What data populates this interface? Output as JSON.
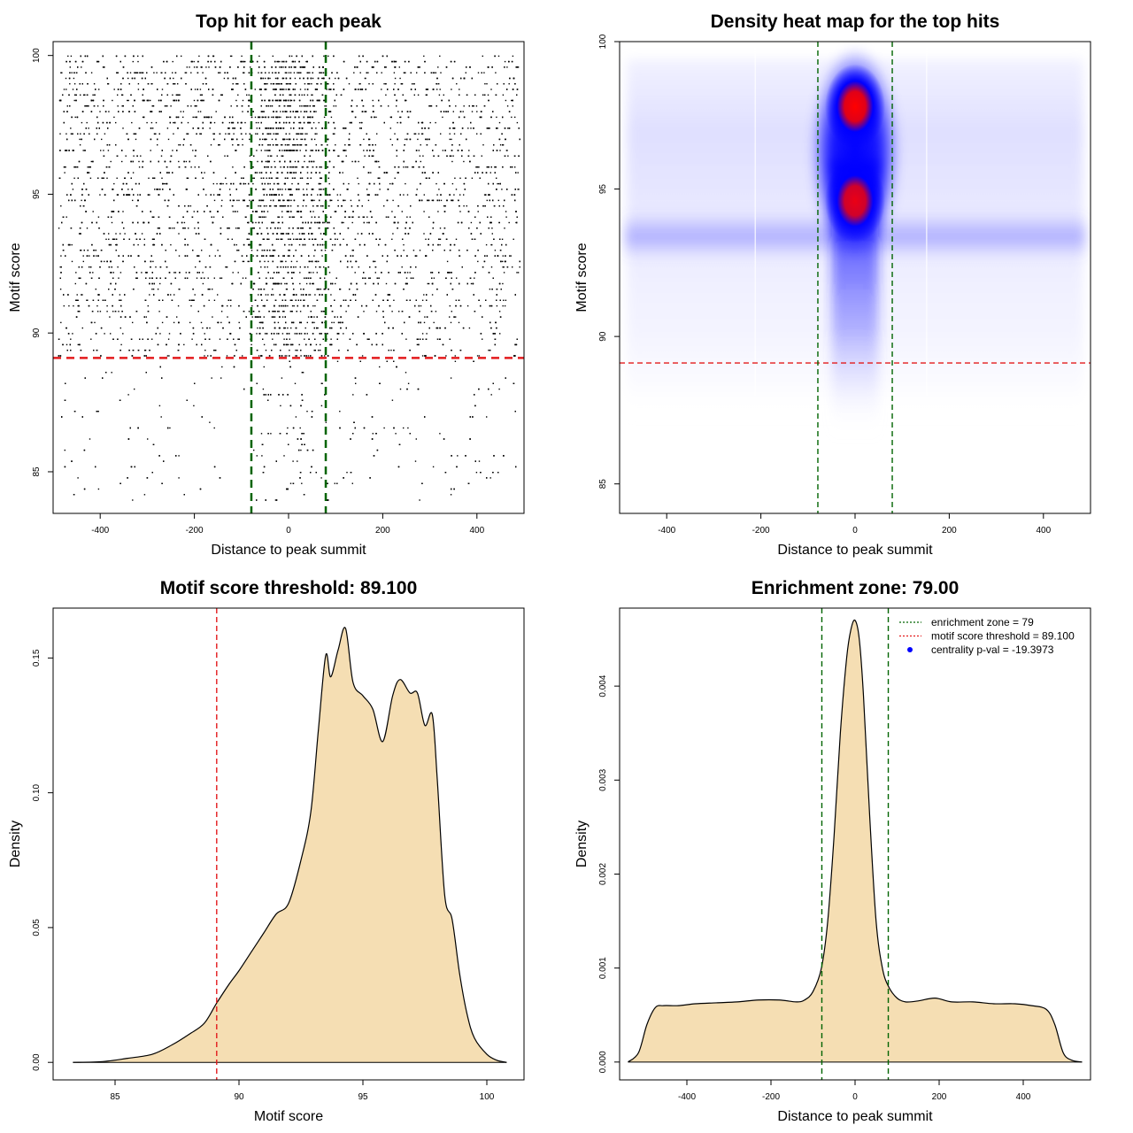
{
  "chart_data": [
    {
      "id": "scatter",
      "type": "scatter",
      "title": "Top hit for each peak",
      "xlabel": "Distance to peak summit",
      "ylabel": "Motif score",
      "xlim": [
        -500,
        500
      ],
      "ylim": [
        83.5,
        100.5
      ],
      "x_ticks": [
        -400,
        -200,
        0,
        200,
        400
      ],
      "y_ticks": [
        85,
        90,
        95,
        100
      ],
      "enrichment_zone": 79,
      "score_threshold": 89.1,
      "colors": {
        "points": "#000000",
        "threshold": "#e31a1c",
        "zone": "#006400"
      },
      "points_description": "many thousands of top-hit points, dense band at |x| < 79, most scores between 89 and 100"
    },
    {
      "id": "heatmap",
      "type": "heatmap",
      "title": "Density heat map for the top hits",
      "xlabel": "Distance to peak summit",
      "ylabel": "Motif score",
      "xlim": [
        -500,
        500
      ],
      "ylim": [
        84,
        100
      ],
      "x_ticks": [
        -400,
        -200,
        0,
        200,
        400
      ],
      "y_ticks": [
        85,
        90,
        95,
        100
      ],
      "enrichment_zone": 79,
      "score_threshold": 89.1,
      "colors": {
        "low": "#ffffff",
        "mid": "#0000ff",
        "high": "#ff0000",
        "threshold": "#e31a1c",
        "zone": "#006400"
      },
      "hotspots": [
        {
          "x": 0,
          "y": 97.8,
          "intensity": 1.0
        },
        {
          "x": 0,
          "y": 94.6,
          "intensity": 0.92
        }
      ],
      "background_band_y": 93.4
    },
    {
      "id": "score-density",
      "type": "area",
      "title": "Motif score threshold: 89.100",
      "xlabel": "Motif score",
      "ylabel": "Density",
      "xlim": [
        82.5,
        101.5
      ],
      "ylim": [
        -0.0065,
        0.1685
      ],
      "x_ticks": [
        85,
        90,
        95,
        100
      ],
      "y_ticks": [
        0.0,
        0.05,
        0.1,
        0.15
      ],
      "y_tick_labels": [
        "0.00",
        "0.05",
        "0.10",
        "0.15"
      ],
      "threshold": 89.1,
      "colors": {
        "fill": "#f5deb3",
        "line": "#000000",
        "threshold": "#e31a1c"
      },
      "x": [
        83.3,
        84.5,
        85.5,
        86.5,
        87.3,
        88.0,
        88.6,
        89.1,
        89.6,
        90.0,
        90.5,
        91.0,
        91.5,
        92.0,
        92.5,
        92.9,
        93.2,
        93.5,
        93.7,
        94.0,
        94.3,
        94.6,
        95.0,
        95.4,
        95.8,
        96.2,
        96.5,
        96.9,
        97.2,
        97.5,
        97.8,
        98.0,
        98.3,
        98.6,
        98.9,
        99.2,
        99.5,
        100.0,
        100.4,
        100.8
      ],
      "y": [
        0.0,
        0.0003,
        0.0015,
        0.003,
        0.0065,
        0.0105,
        0.0145,
        0.022,
        0.029,
        0.034,
        0.041,
        0.048,
        0.055,
        0.059,
        0.075,
        0.093,
        0.123,
        0.151,
        0.143,
        0.153,
        0.161,
        0.141,
        0.136,
        0.131,
        0.119,
        0.136,
        0.142,
        0.137,
        0.137,
        0.125,
        0.129,
        0.105,
        0.062,
        0.053,
        0.033,
        0.018,
        0.009,
        0.003,
        0.0008,
        0.0
      ]
    },
    {
      "id": "distance-density",
      "type": "area",
      "title": "Enrichment zone: 79.00",
      "xlabel": "Distance to peak summit",
      "ylabel": "Density",
      "xlim": [
        -560,
        560
      ],
      "ylim": [
        -0.00019,
        0.00483
      ],
      "x_ticks": [
        -400,
        -200,
        0,
        200,
        400
      ],
      "y_ticks": [
        0.0,
        0.001,
        0.002,
        0.003,
        0.004
      ],
      "y_tick_labels": [
        "0.000",
        "0.001",
        "0.002",
        "0.003",
        "0.004"
      ],
      "enrichment_zone": 79,
      "colors": {
        "fill": "#f5deb3",
        "line": "#000000",
        "zone": "#006400"
      },
      "x": [
        -540,
        -515,
        -495,
        -475,
        -455,
        -420,
        -380,
        -330,
        -280,
        -230,
        -180,
        -140,
        -120,
        -100,
        -80,
        -65,
        -50,
        -35,
        -20,
        -10,
        0,
        10,
        20,
        35,
        50,
        65,
        80,
        100,
        120,
        150,
        190,
        230,
        280,
        330,
        380,
        420,
        455,
        475,
        495,
        515,
        540
      ],
      "y": [
        0.0,
        0.0001,
        0.0004,
        0.00058,
        0.0006,
        0.0006,
        0.00062,
        0.00063,
        0.00064,
        0.00066,
        0.00066,
        0.00064,
        0.00066,
        0.00075,
        0.001,
        0.0015,
        0.0024,
        0.0035,
        0.0043,
        0.0046,
        0.0047,
        0.0045,
        0.0039,
        0.0026,
        0.0015,
        0.001,
        0.0008,
        0.00068,
        0.00064,
        0.00065,
        0.00068,
        0.00064,
        0.00064,
        0.00062,
        0.00062,
        0.0006,
        0.00056,
        0.0004,
        0.0001,
        2e-05,
        0.0
      ],
      "legend": [
        {
          "label": "enrichment zone = 79",
          "style": "dotted",
          "color": "#006400"
        },
        {
          "label": "motif score threshold = 89.100",
          "style": "dotted",
          "color": "#e31a1c"
        },
        {
          "label": "centrality p-val = -19.3973",
          "style": "point",
          "color": "#0000ff"
        }
      ]
    }
  ]
}
